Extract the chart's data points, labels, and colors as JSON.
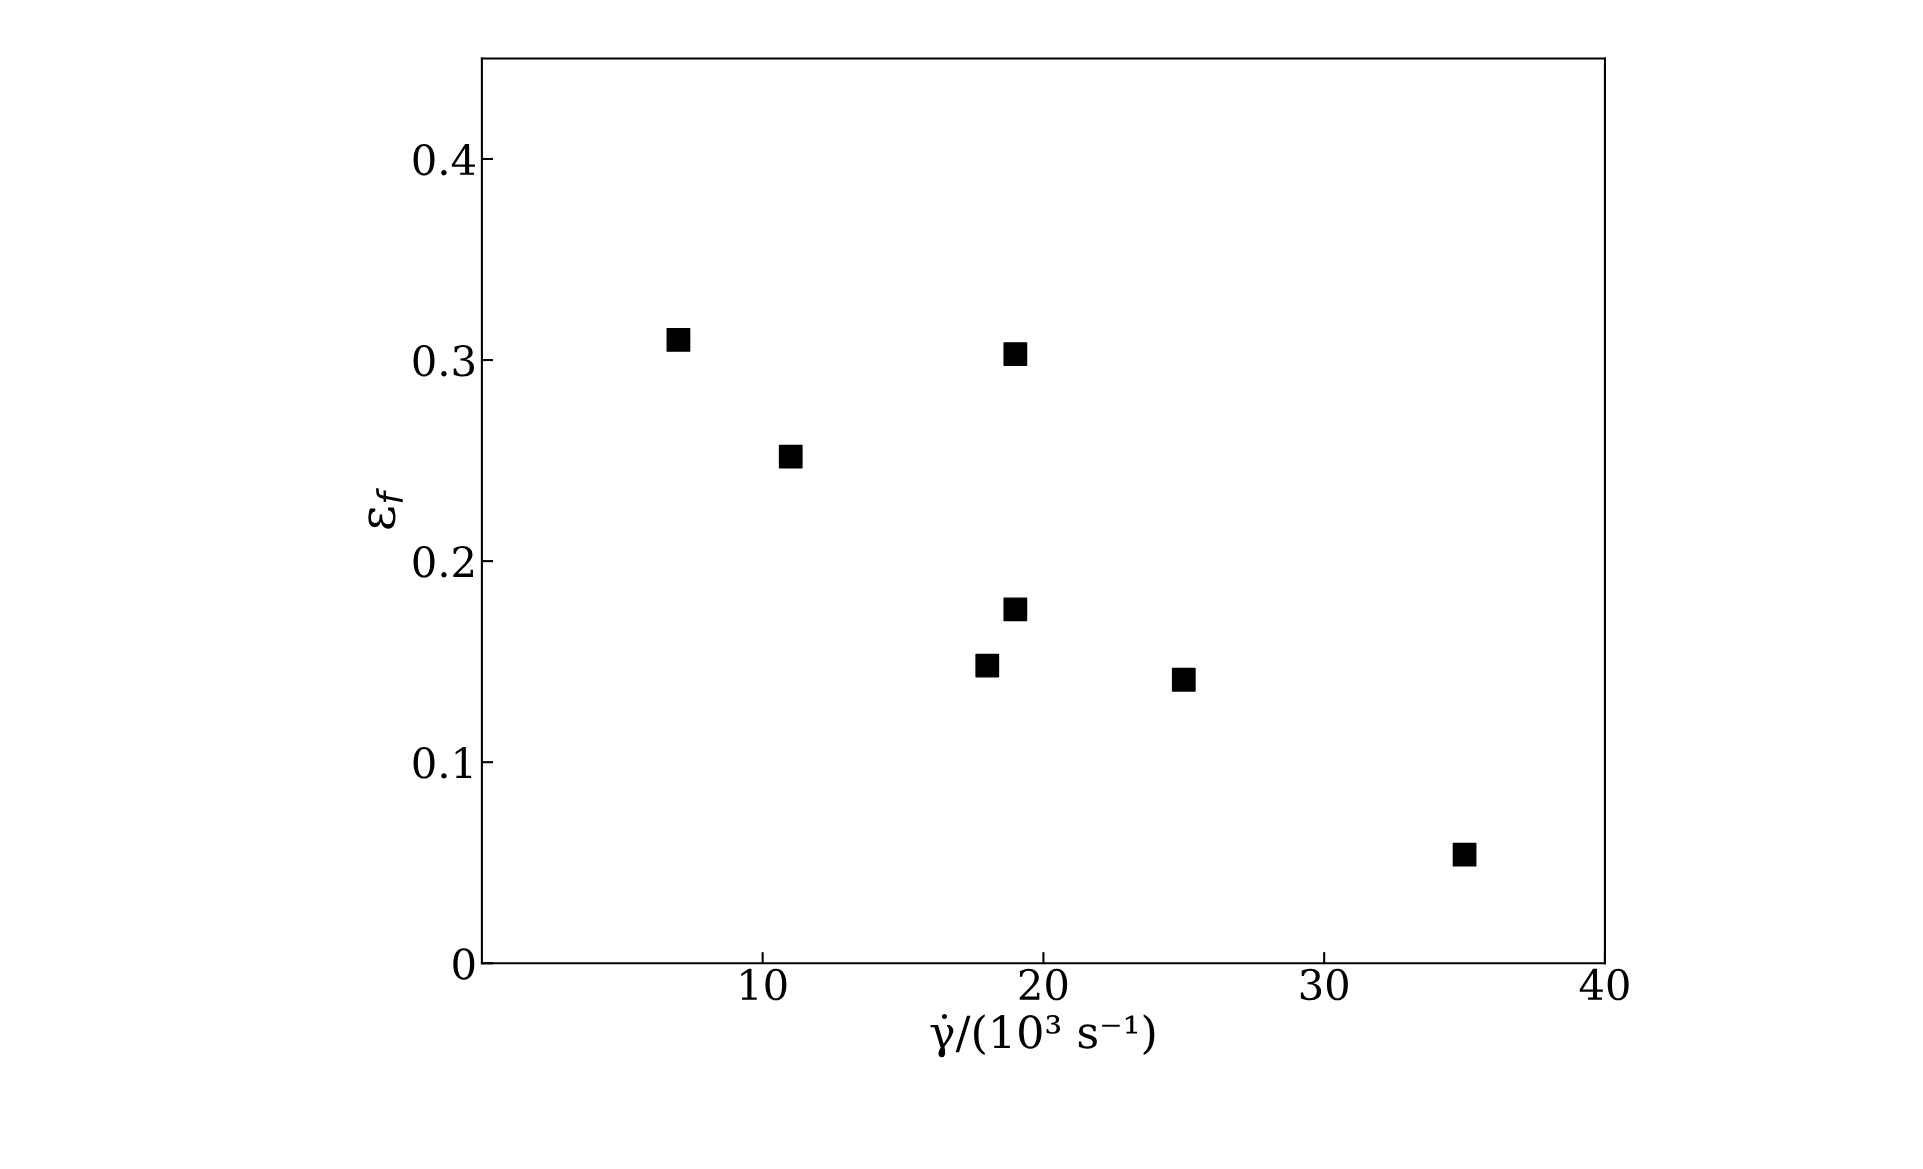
{
  "chart_data": {
    "type": "scatter",
    "xlabel": "γ̇/(10³ s⁻¹)",
    "ylabel": "ε$_{f}$",
    "x": [
      7,
      11,
      19,
      19,
      18,
      25,
      35
    ],
    "series": [
      {
        "color": "#000000",
        "values": [
          0.31,
          0.252,
          0.303,
          0.176,
          0.148,
          0.141,
          0.054
        ]
      }
    ],
    "marker": "square",
    "xlim": [
      0,
      40
    ],
    "ylim": [
      0,
      0.45
    ],
    "xticks": [
      10,
      20,
      30,
      40
    ],
    "yticks": [
      0,
      0.1,
      0.2,
      0.3,
      0.4
    ],
    "grid": false,
    "legend": false
  }
}
